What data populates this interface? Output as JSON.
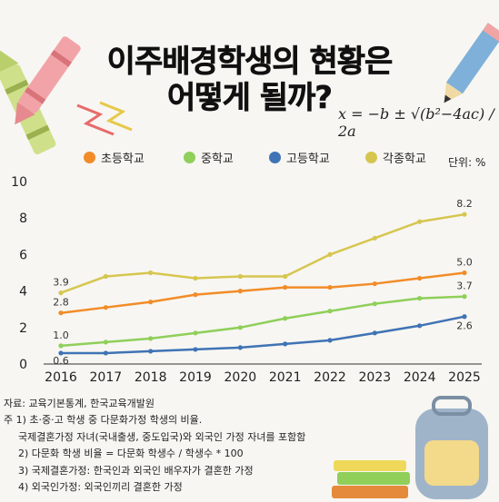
{
  "title": [
    "이주배경학생의 현황은",
    "어떻게 될까?"
  ],
  "formula": "x = −b ± √(b²−4ac) / 2a",
  "unit_label": "단위: %",
  "colors": {
    "elementary": "#f28c28",
    "middle": "#8fcf5a",
    "high": "#3f73b5",
    "all": "#d6c650"
  },
  "chart_data": {
    "type": "line",
    "x": [
      "2016",
      "2017",
      "2018",
      "2019",
      "2020",
      "2021",
      "2022",
      "2023",
      "2024",
      "2025"
    ],
    "ylim": [
      0,
      10
    ],
    "yticks": [
      "0",
      "2",
      "4",
      "6",
      "8",
      "10"
    ],
    "grid": false,
    "legend_position": "top",
    "series": [
      {
        "name": "초등학교",
        "color_key": "elementary",
        "values": [
          2.8,
          3.1,
          3.4,
          3.8,
          4.0,
          4.2,
          4.2,
          4.4,
          4.7,
          5.0
        ],
        "labels": [
          "2.8",
          "5.0"
        ]
      },
      {
        "name": "중학교",
        "color_key": "middle",
        "values": [
          1.0,
          1.2,
          1.4,
          1.7,
          2.0,
          2.5,
          2.9,
          3.3,
          3.6,
          3.7
        ],
        "labels": [
          "1.0",
          "3.7"
        ]
      },
      {
        "name": "고등학교",
        "color_key": "high",
        "values": [
          0.6,
          0.6,
          0.7,
          0.8,
          0.9,
          1.1,
          1.3,
          1.7,
          2.1,
          2.6
        ],
        "labels": [
          "0.6",
          "2.6"
        ]
      },
      {
        "name": "각종학교",
        "color_key": "all",
        "values": [
          3.9,
          4.8,
          5.0,
          4.7,
          4.8,
          4.8,
          6.0,
          6.9,
          7.8,
          8.2
        ],
        "labels": [
          "3.9",
          "8.2"
        ]
      }
    ]
  },
  "notes": [
    "자료: 교육기본통계, 한국교육개발원",
    "주 1) 초·중·고 학생 중 다문화가정 학생의 비율.",
    "      국제결혼가정 자녀(국내출생, 중도입국)와 외국인 가정 자녀를 포함함",
    "   2) 다문화 학생 비율 = 다문화 학생수 / 학생수 * 100",
    "   3) 국제결혼가정: 한국인과 외국인 배우자가 결혼한 가정",
    "   4) 외국인가정: 외국인끼리 결혼한 가정"
  ]
}
